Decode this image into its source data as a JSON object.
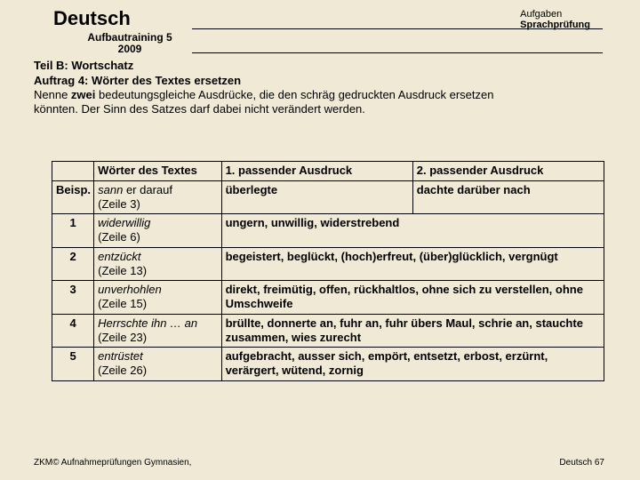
{
  "header": {
    "subject": "Deutsch",
    "subtitle_line1": "Aufbautraining 5",
    "subtitle_line2": "2009",
    "topright_line1": "Aufgaben",
    "topright_line2": "Sprachprüfung"
  },
  "intro": {
    "teil": "Teil B: Wortschatz",
    "auftrag": "Auftrag 4: Wörter des Textes ersetzen",
    "line1a": "Nenne ",
    "line1b": "zwei",
    "line1c": " bedeutungsgleiche Ausdrücke, die den schräg gedruckten Ausdruck ersetzen",
    "line2": "könnten. Der Sinn des Satzes darf dabei nicht verändert werden."
  },
  "table": {
    "col0": "",
    "col1": "Wörter des Textes",
    "col2": "1. passender Ausdruck",
    "col3": "2. passender Ausdruck",
    "rows": [
      {
        "num": "Beisp.",
        "word_italic": "sann",
        "word_rest": " er darauf",
        "line_ref": "(Zeile 3)",
        "ans1": "überlegte",
        "ans2": "dachte darüber nach",
        "merged": false
      },
      {
        "num": "1",
        "word_italic": "widerwillig",
        "word_rest": "",
        "line_ref": "(Zeile 6)",
        "ans_merged": "ungern, unwillig, widerstrebend",
        "merged": true
      },
      {
        "num": "2",
        "word_italic": "entzückt",
        "word_rest": "",
        "line_ref": "(Zeile 13)",
        "ans_merged": "begeistert, beglückt, (hoch)erfreut, (über)glücklich, vergnügt",
        "merged": true
      },
      {
        "num": "3",
        "word_italic": "unverhohlen",
        "word_rest": "",
        "line_ref": "(Zeile 15)",
        "ans_merged": "direkt, freimütig, offen, rückhaltlos, ohne sich zu verstellen, ohne Umschweife",
        "merged": true
      },
      {
        "num": "4",
        "word_italic": "Herrschte ihn … an",
        "word_rest": "",
        "line_ref": "(Zeile 23)",
        "ans_merged": "brüllte, donnerte an, fuhr an, fuhr übers Maul, schrie an, stauchte zusammen, wies zurecht",
        "merged": true
      },
      {
        "num": "5",
        "word_italic": "entrüstet",
        "word_rest": "",
        "line_ref": "(Zeile 26)",
        "ans_merged": "aufgebracht, ausser sich, empört, entsetzt, erbost, erzürnt, verärgert, wütend, zornig",
        "merged": true
      }
    ]
  },
  "footer": {
    "left": "ZKM© Aufnahmeprüfungen Gymnasien,",
    "right": "Deutsch 67"
  },
  "colors": {
    "background": "#efe9d6",
    "text": "#000000",
    "border": "#000000"
  }
}
